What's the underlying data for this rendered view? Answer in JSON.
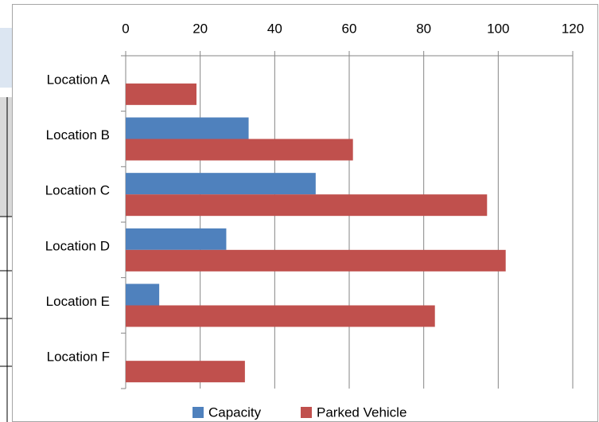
{
  "chart_data": {
    "type": "bar",
    "orientation": "horizontal",
    "categories": [
      "Location A",
      "Location B",
      "Location C",
      "Location D",
      "Location E",
      "Location F"
    ],
    "series": [
      {
        "name": "Capacity",
        "color": "#4f81bd",
        "values": [
          0,
          33,
          51,
          27,
          9,
          0
        ]
      },
      {
        "name": "Parked Vehicle",
        "color": "#c0504d",
        "values": [
          19,
          61,
          97,
          102,
          83,
          32
        ]
      }
    ],
    "xlim": [
      0,
      120
    ],
    "xticks": [
      0,
      20,
      40,
      60,
      80,
      100,
      120
    ],
    "grid": true,
    "legend": "bottom"
  }
}
